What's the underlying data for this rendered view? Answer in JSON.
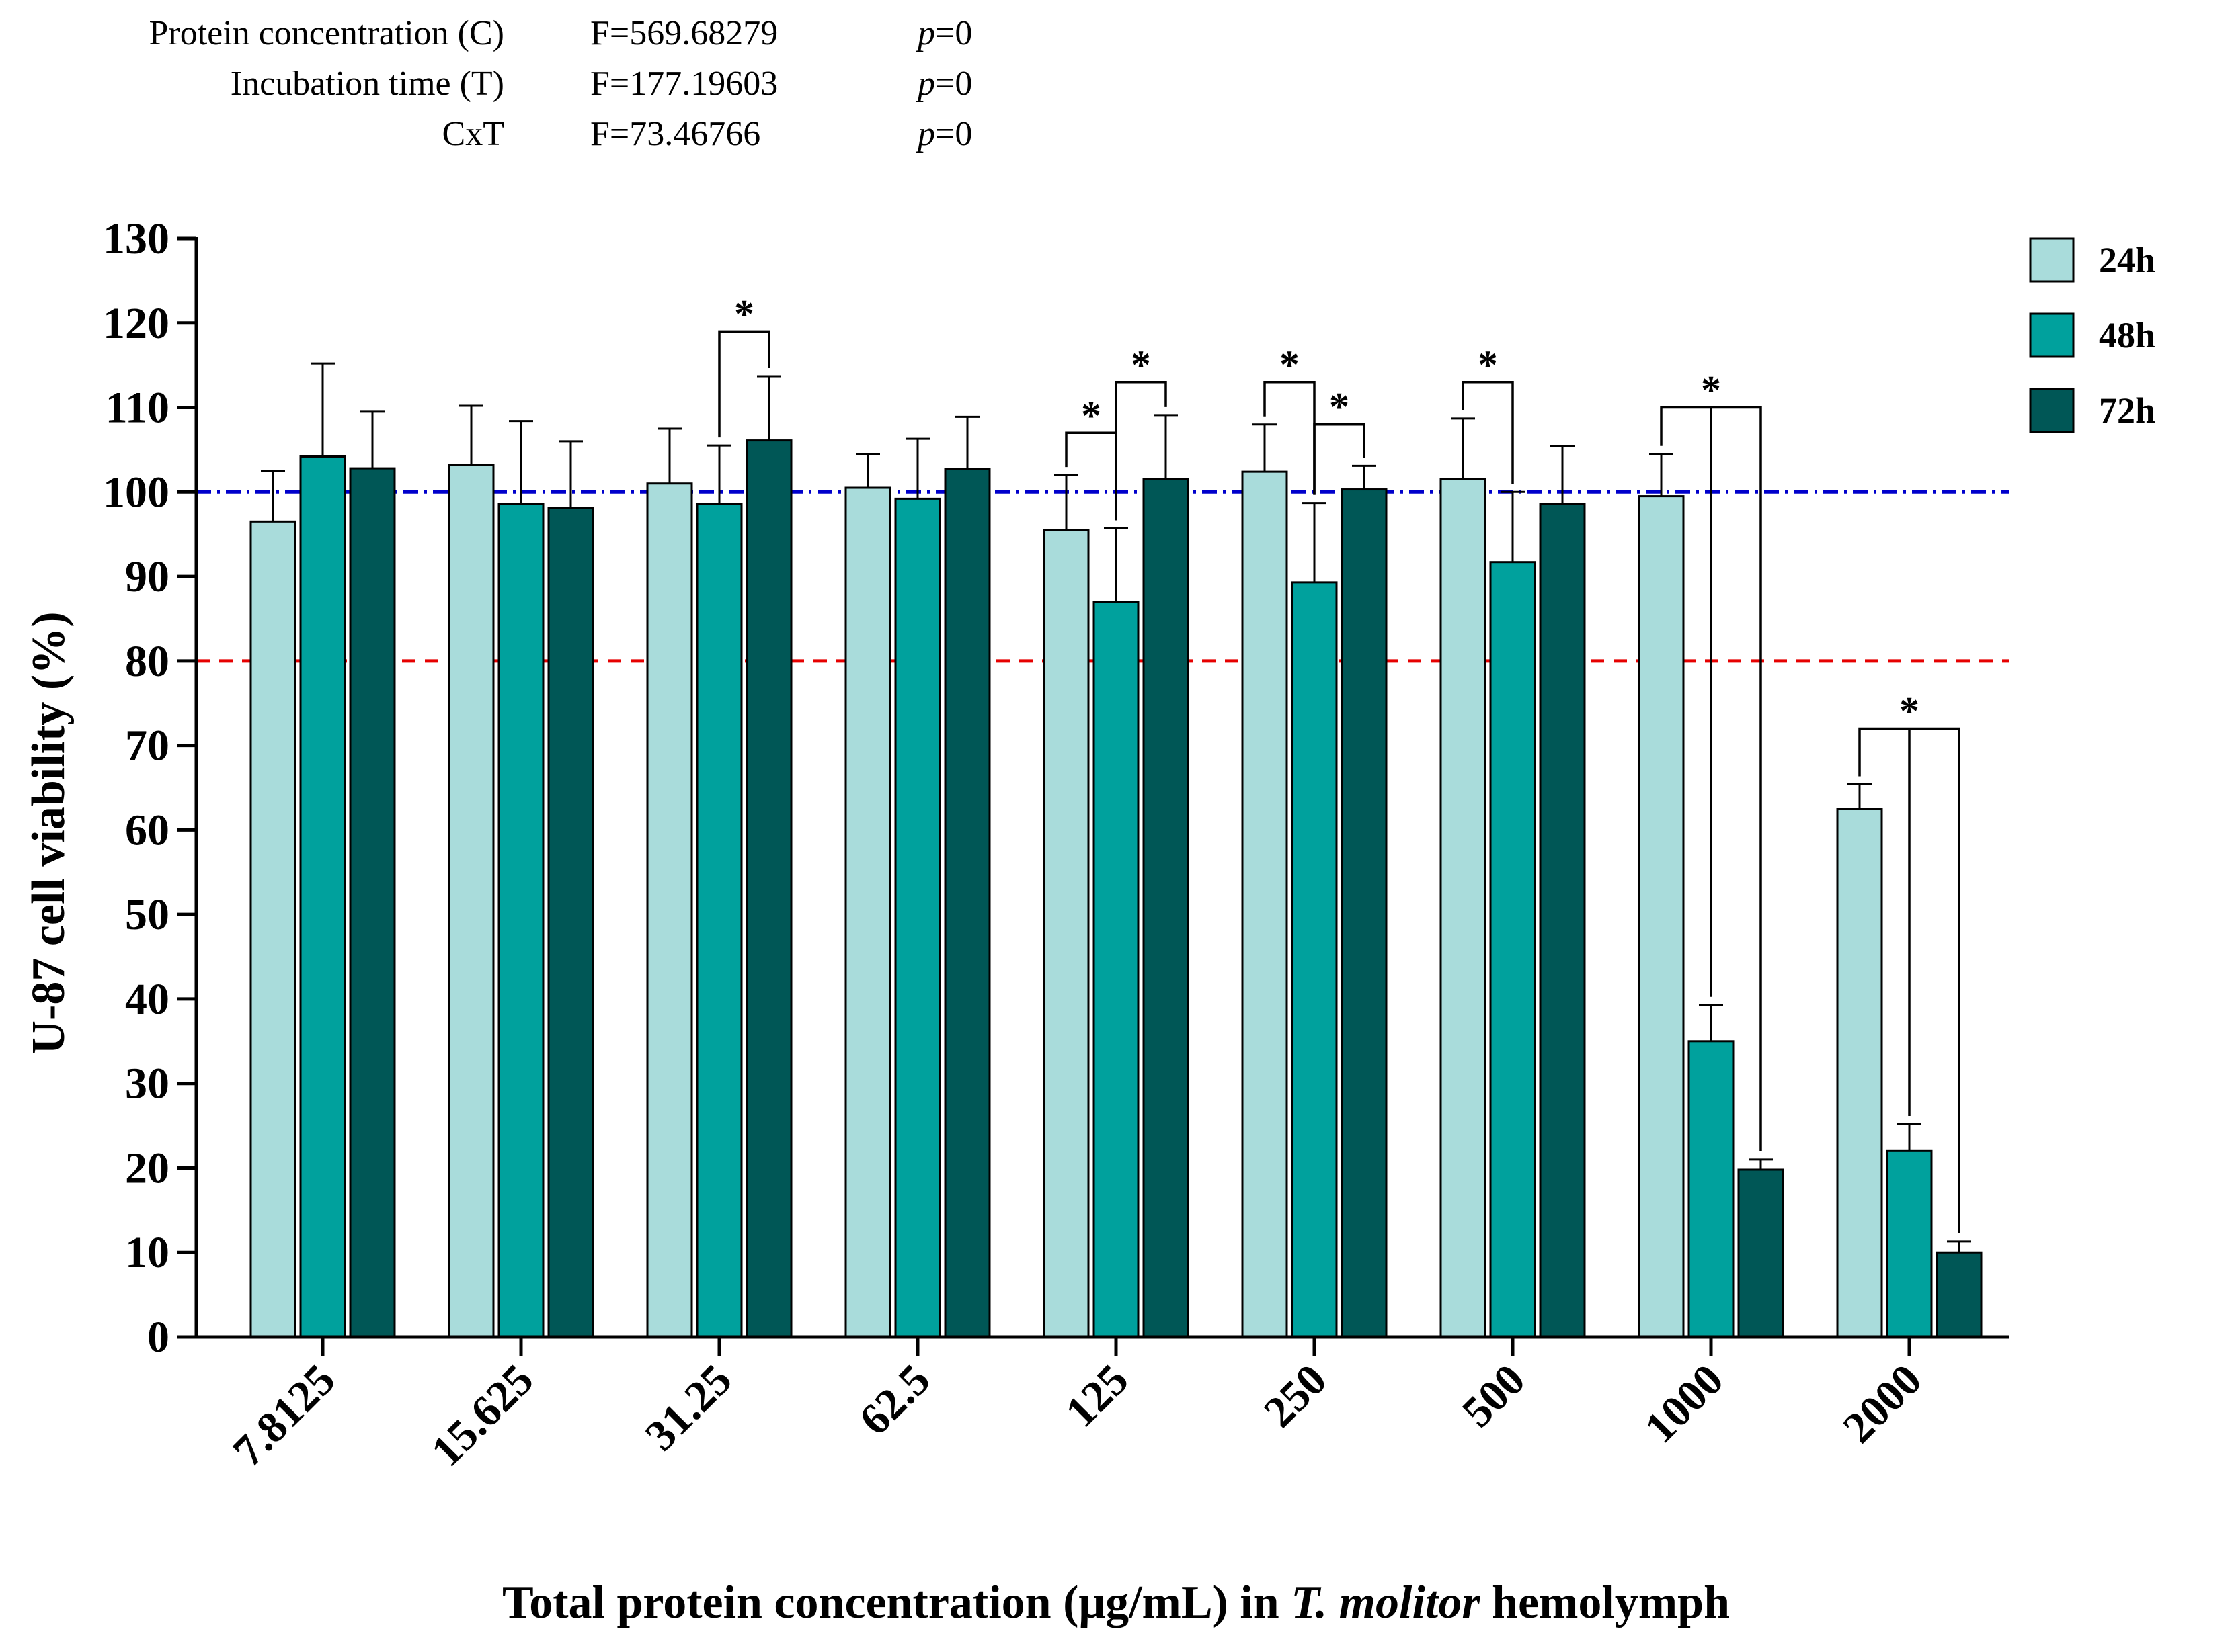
{
  "stats": [
    {
      "label": "Protein concentration (C)",
      "f": "F=569.68279",
      "p_prefix": "p",
      "p_value": "=0"
    },
    {
      "label": "Incubation time (T)",
      "f": "F=177.19603",
      "p_prefix": "p",
      "p_value": "=0"
    },
    {
      "label": "CxT",
      "f": "F=73.46766",
      "p_prefix": "p",
      "p_value": "=0"
    }
  ],
  "chart_data": {
    "type": "bar",
    "title": "",
    "ylabel": "U-87 cell viability (%)",
    "xlabel_parts": {
      "before": "Total protein concentration (μg/mL) in ",
      "italic": "T. molitor",
      "after": " hemolymph"
    },
    "ylim": [
      0,
      130
    ],
    "yticks": [
      "0",
      "10",
      "20",
      "30",
      "40",
      "50",
      "60",
      "70",
      "80",
      "90",
      "100",
      "110",
      "120",
      "130"
    ],
    "categories": [
      "7.8125",
      "15.625",
      "31.25",
      "62.5",
      "125",
      "250",
      "500",
      "1000",
      "2000"
    ],
    "series": [
      {
        "name": "24h",
        "color": "#a9dcdb",
        "values": [
          96.5,
          103.2,
          101.0,
          100.5,
          95.5,
          102.4,
          101.5,
          99.5,
          62.5
        ],
        "errors": [
          6.0,
          7.0,
          6.5,
          4.0,
          6.5,
          5.6,
          7.2,
          5.0,
          2.9
        ]
      },
      {
        "name": "48h",
        "color": "#00a19d",
        "values": [
          104.2,
          98.6,
          98.6,
          99.2,
          87.0,
          89.3,
          91.7,
          35.0,
          22.0
        ],
        "errors": [
          11.0,
          9.8,
          6.9,
          7.1,
          8.7,
          9.4,
          8.3,
          4.3,
          3.2
        ]
      },
      {
        "name": "72h",
        "color": "#005756",
        "values": [
          102.8,
          98.1,
          106.1,
          102.7,
          101.5,
          100.3,
          98.6,
          19.8,
          10.0
        ],
        "errors": [
          6.7,
          7.9,
          7.6,
          6.2,
          7.6,
          2.8,
          6.8,
          1.2,
          1.3
        ]
      }
    ],
    "reference_lines": [
      {
        "value": 100,
        "color": "#0000cc",
        "style": "dash-dot"
      },
      {
        "value": 80,
        "color": "#e60000",
        "style": "dashed"
      }
    ],
    "significance": [
      {
        "category": 2,
        "from": 1,
        "to": 2,
        "level": 119,
        "label": "*"
      },
      {
        "category": 4,
        "from": 0,
        "to": 1,
        "level": 107,
        "label": "*"
      },
      {
        "category": 4,
        "from": 1,
        "to": 2,
        "level": 113,
        "label": "*"
      },
      {
        "category": 5,
        "from": 0,
        "to": 1,
        "level": 113,
        "label": "*"
      },
      {
        "category": 5,
        "from": 1,
        "to": 2,
        "level": 108,
        "label": "*"
      },
      {
        "category": 6,
        "from": 0,
        "to": 1,
        "level": 113,
        "label": "*"
      },
      {
        "category": 7,
        "from": 0,
        "to": 2,
        "mid": 1,
        "level": 110,
        "label": "*"
      },
      {
        "category": 8,
        "from": 0,
        "to": 2,
        "mid": 1,
        "level": 72,
        "label": "*"
      }
    ],
    "legend": {
      "position": "top-right"
    }
  }
}
